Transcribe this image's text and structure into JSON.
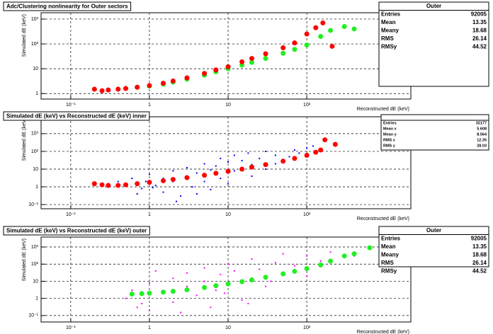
{
  "chart_data": [
    {
      "type": "scatter",
      "title": "Adc/Clustering nonlinearity for Outer sectors",
      "xlabel": "Reconstructed dE (keV)",
      "ylabel": "Simulated dE (keV)",
      "xlog": true,
      "ylog": true,
      "grid": true,
      "xlim": [
        0.042,
        2100
      ],
      "ylim": [
        0.6,
        1800
      ],
      "xticks": [
        {
          "value": 0.1,
          "label": "10⁻¹"
        },
        1,
        10,
        {
          "value": 100,
          "label": "10²"
        }
      ],
      "yticks": [
        1,
        10,
        {
          "value": 100,
          "label": "10²"
        },
        {
          "value": 1000,
          "label": "10³"
        }
      ],
      "series": [
        {
          "color": "#22ee22",
          "marker": "circle",
          "x": [
            0.5,
            0.7,
            1,
            1.5,
            2,
            3,
            5,
            7,
            10,
            15,
            20,
            30,
            50,
            70,
            100,
            150,
            200,
            300,
            400
          ],
          "values": [
            1.6,
            1.8,
            2.0,
            2.4,
            2.9,
            3.8,
            5.5,
            7.5,
            10,
            14,
            18,
            26,
            42,
            60,
            90,
            200,
            350,
            500,
            400
          ]
        },
        {
          "color": "#ff0000",
          "marker": "circle",
          "x": [
            0.2,
            0.25,
            0.3,
            0.4,
            0.5,
            0.7,
            1,
            1.5,
            2,
            3,
            5,
            7,
            10,
            15,
            20,
            30,
            50,
            70,
            100,
            130,
            160,
            210
          ],
          "values": [
            1.5,
            1.3,
            1.4,
            1.5,
            1.6,
            1.8,
            2.1,
            2.6,
            3.2,
            4.3,
            6.5,
            9,
            12,
            19,
            26,
            40,
            70,
            110,
            250,
            450,
            700,
            80
          ]
        }
      ],
      "stats": {
        "title": "Outer",
        "rows": [
          [
            "Entries",
            92005
          ],
          [
            "Mean",
            13.35
          ],
          [
            "Meany",
            18.68
          ],
          [
            "RMS",
            26.14
          ],
          [
            "RMSy",
            44.52
          ]
        ]
      }
    },
    {
      "type": "scatter",
      "title": "Simulated dE (keV) vs Reconstructed dE (keV) inner",
      "xlabel": "Reconstructed dE (keV)",
      "ylabel": "Simulated dE (keV)",
      "xlog": true,
      "ylog": true,
      "grid": true,
      "xlim": [
        0.042,
        2100
      ],
      "ylim": [
        0.058,
        9000
      ],
      "xticks": [
        {
          "value": 0.1,
          "label": "10⁻¹"
        },
        1,
        10,
        {
          "value": 100,
          "label": "10²"
        }
      ],
      "yticks": [
        {
          "value": 0.1,
          "label": "10⁻¹"
        },
        1,
        10,
        {
          "value": 100,
          "label": "10²"
        },
        {
          "value": 1000,
          "label": "10³"
        }
      ],
      "series": [
        {
          "color": "#0000ff",
          "marker": "dot",
          "x": [
            0.3,
            0.4,
            0.5,
            0.6,
            0.8,
            0.9,
            1,
            1.2,
            1.5,
            1.5,
            2,
            2,
            2.5,
            3,
            3,
            3.5,
            4,
            4,
            5,
            5,
            6,
            6,
            7,
            8,
            8,
            10,
            10,
            12,
            12,
            15,
            15,
            18,
            20,
            20,
            25,
            30,
            30,
            40,
            40,
            50,
            60,
            70,
            80,
            100,
            120,
            0.7,
            1.1,
            2.2
          ],
          "values": [
            1,
            2,
            1.5,
            3,
            0.8,
            2,
            5,
            1.2,
            3,
            0.5,
            8,
            2,
            0.3,
            4,
            12,
            1,
            6,
            0.4,
            20,
            2,
            9,
            0.7,
            15,
            3,
            40,
            25,
            1.5,
            8,
            60,
            12,
            30,
            80,
            4,
            18,
            40,
            10,
            100,
            20,
            60,
            35,
            50,
            120,
            80,
            150,
            200,
            0.4,
            0.9,
            0.15
          ]
        },
        {
          "color": "#ff0000",
          "marker": "circle",
          "x": [
            0.2,
            0.25,
            0.3,
            0.4,
            0.5,
            0.7,
            1,
            1.5,
            2,
            3,
            5,
            7,
            10,
            15,
            20,
            30,
            50,
            70,
            100,
            130,
            150,
            170,
            230
          ],
          "values": [
            1.5,
            1.3,
            1.2,
            1.2,
            1.3,
            1.5,
            1.8,
            2.2,
            2.6,
            3.3,
            4.5,
            5.8,
            7.5,
            10,
            13,
            18,
            28,
            40,
            60,
            90,
            120,
            450,
            250
          ]
        }
      ],
      "stats": {
        "rows": [
          [
            "Entries",
            32177
          ],
          [
            "Mean x",
            5.608
          ],
          [
            "Mean y",
            8.564
          ],
          [
            "RMS x",
            12.35
          ],
          [
            "RMS y",
            28.03
          ]
        ]
      }
    },
    {
      "type": "scatter",
      "title": "Simulated dE (keV) vs Reconstructed dE (keV) outer",
      "xlabel": "Reconstructed dE (keV)",
      "ylabel": "Simulated dE (keV)",
      "xlog": true,
      "ylog": true,
      "grid": true,
      "xlim": [
        0.042,
        2100
      ],
      "ylim": [
        0.042,
        3800
      ],
      "xticks": [
        {
          "value": 0.1,
          "label": "10⁻¹"
        },
        1,
        10,
        {
          "value": 100,
          "label": "10²"
        }
      ],
      "yticks": [
        {
          "value": 0.1,
          "label": "10⁻¹"
        },
        1,
        10,
        {
          "value": 100,
          "label": "10²"
        },
        {
          "value": 1000,
          "label": "10³"
        }
      ],
      "series": [
        {
          "color": "#ff00ff",
          "marker": "dot",
          "x": [
            0.5,
            0.6,
            0.8,
            1,
            1,
            1.5,
            2,
            2,
            3,
            3,
            4,
            5,
            5,
            7,
            8,
            10,
            10,
            12,
            15,
            20,
            20,
            25,
            30,
            40,
            50,
            50,
            70,
            100,
            100,
            150,
            200,
            300,
            400,
            0.7,
            1.2,
            2.5,
            6,
            9,
            18,
            35
          ],
          "values": [
            1,
            3,
            0.5,
            8,
            0.2,
            2,
            15,
            0.6,
            5,
            30,
            1.5,
            10,
            60,
            3,
            25,
            100,
            8,
            40,
            0.8,
            15,
            200,
            50,
            5,
            120,
            30,
            400,
            80,
            20,
            300,
            150,
            500,
            250,
            300,
            0.3,
            40,
            0.15,
            0.3,
            2,
            0.5,
            10
          ]
        },
        {
          "color": "#22ee22",
          "marker": "circle",
          "x": [
            0.6,
            0.8,
            1,
            1.5,
            2,
            3,
            5,
            7,
            10,
            15,
            20,
            30,
            50,
            70,
            100,
            150,
            200,
            300,
            400,
            630
          ],
          "values": [
            1.8,
            1.9,
            2,
            2.3,
            2.6,
            3.2,
            4.3,
            5.5,
            7,
            9.5,
            12,
            17,
            27,
            38,
            55,
            90,
            150,
            300,
            400,
            900
          ]
        }
      ],
      "stats": {
        "title": "Outer",
        "rows": [
          [
            "Entries",
            92005
          ],
          [
            "Mean",
            13.35
          ],
          [
            "Meany",
            18.68
          ],
          [
            "RMS",
            26.14
          ],
          [
            "RMSy",
            44.52
          ]
        ]
      }
    }
  ]
}
